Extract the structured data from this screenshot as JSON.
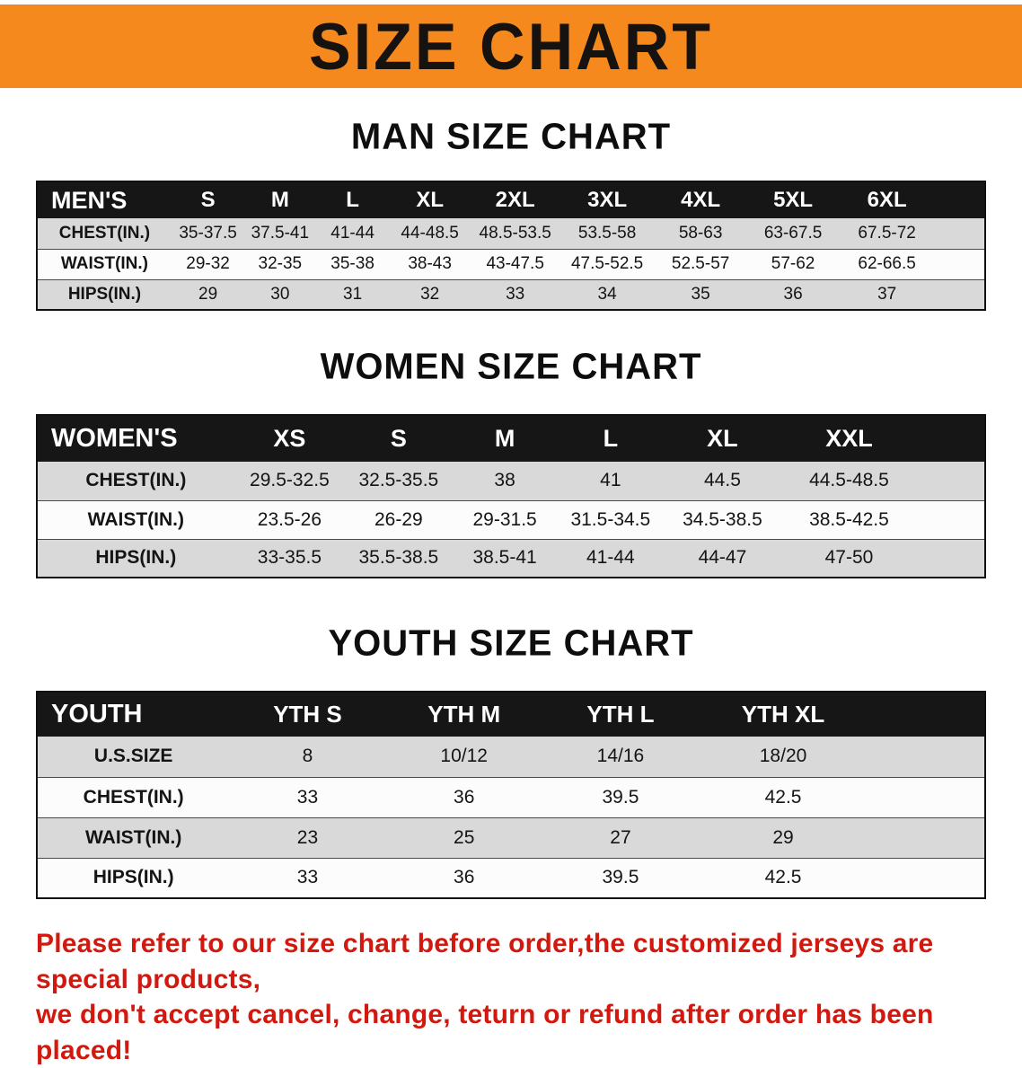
{
  "banner": {
    "title": "SIZE CHART",
    "bg_color": "#f6891e",
    "text_color": "#151210"
  },
  "colors": {
    "table_header_bg": "#161616",
    "row_stripe_gray": "#d9d9d9",
    "row_stripe_white": "#fcfcfc",
    "notice_red": "#d2190f"
  },
  "men": {
    "heading": "MAN SIZE CHART",
    "table": {
      "header": [
        "MEN'S",
        "S",
        "M",
        "L",
        "XL",
        "2XL",
        "3XL",
        "4XL",
        "5XL",
        "6XL"
      ],
      "rows": [
        [
          "CHEST(IN.)",
          "35-37.5",
          "37.5-41",
          "41-44",
          "44-48.5",
          "48.5-53.5",
          "53.5-58",
          "58-63",
          "63-67.5",
          "67.5-72"
        ],
        [
          "WAIST(IN.)",
          "29-32",
          "32-35",
          "35-38",
          "38-43",
          "43-47.5",
          "47.5-52.5",
          "52.5-57",
          "57-62",
          "62-66.5"
        ],
        [
          "HIPS(IN.)",
          "29",
          "30",
          "31",
          "32",
          "33",
          "34",
          "35",
          "36",
          "37"
        ]
      ]
    }
  },
  "women": {
    "heading": "WOMEN SIZE CHART",
    "table": {
      "header": [
        "WOMEN'S",
        "XS",
        "S",
        "M",
        "L",
        "XL",
        "XXL"
      ],
      "rows": [
        [
          "CHEST(IN.)",
          "29.5-32.5",
          "32.5-35.5",
          "38",
          "41",
          "44.5",
          "44.5-48.5"
        ],
        [
          "WAIST(IN.)",
          "23.5-26",
          "26-29",
          "29-31.5",
          "31.5-34.5",
          "34.5-38.5",
          "38.5-42.5"
        ],
        [
          "HIPS(IN.)",
          "33-35.5",
          "35.5-38.5",
          "38.5-41",
          "41-44",
          "44-47",
          "47-50"
        ]
      ]
    }
  },
  "youth": {
    "heading": "YOUTH SIZE CHART",
    "table": {
      "header": [
        "YOUTH",
        "YTH S",
        "YTH M",
        "YTH L",
        "YTH XL"
      ],
      "rows": [
        [
          "U.S.SIZE",
          "8",
          "10/12",
          "14/16",
          "18/20"
        ],
        [
          "CHEST(IN.)",
          "33",
          "36",
          "39.5",
          "42.5"
        ],
        [
          "WAIST(IN.)",
          "23",
          "25",
          "27",
          "29"
        ],
        [
          "HIPS(IN.)",
          "33",
          "36",
          "39.5",
          "42.5"
        ]
      ]
    }
  },
  "footer": {
    "line1": "Please refer to our size chart before order,the customized jerseys are special products,",
    "line2": "we don't accept cancel, change, teturn or refund after order has been placed!"
  }
}
